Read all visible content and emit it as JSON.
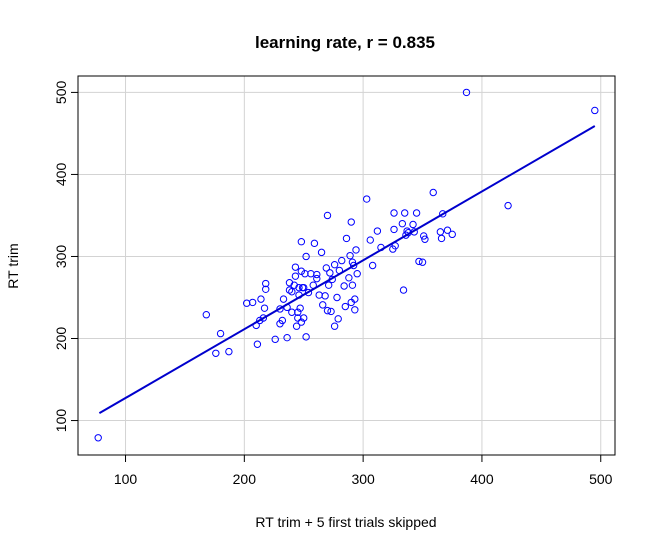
{
  "chart_data": {
    "type": "scatter",
    "title": "learning rate, r = 0.835",
    "xlabel": "RT trim + 5 first trials skipped",
    "ylabel": "RT trim",
    "xlim": [
      60,
      512
    ],
    "ylim": [
      58,
      520
    ],
    "xticks": [
      100,
      200,
      300,
      400,
      500
    ],
    "yticks": [
      100,
      200,
      300,
      400,
      500
    ],
    "grid": true,
    "point_color": "#0000ff",
    "line_color": "#0000cd",
    "points": [
      [
        77,
        79
      ],
      [
        168,
        229
      ],
      [
        176,
        182
      ],
      [
        180,
        206
      ],
      [
        187,
        184
      ],
      [
        202,
        243
      ],
      [
        207,
        244
      ],
      [
        210,
        216
      ],
      [
        211,
        193
      ],
      [
        213,
        222
      ],
      [
        214,
        248
      ],
      [
        217,
        237
      ],
      [
        218,
        260
      ],
      [
        218,
        267
      ],
      [
        216,
        225
      ],
      [
        226,
        199
      ],
      [
        230,
        218
      ],
      [
        230,
        236
      ],
      [
        232,
        222
      ],
      [
        233,
        248
      ],
      [
        236,
        201
      ],
      [
        236,
        238
      ],
      [
        238,
        259
      ],
      [
        238,
        268
      ],
      [
        240,
        257
      ],
      [
        240,
        232
      ],
      [
        242,
        265
      ],
      [
        243,
        276
      ],
      [
        243,
        287
      ],
      [
        244,
        215
      ],
      [
        245,
        225
      ],
      [
        245,
        232
      ],
      [
        246,
        253
      ],
      [
        246,
        262
      ],
      [
        247,
        237
      ],
      [
        248,
        220
      ],
      [
        248,
        282
      ],
      [
        248,
        318
      ],
      [
        249,
        262
      ],
      [
        250,
        225
      ],
      [
        250,
        262
      ],
      [
        251,
        279
      ],
      [
        252,
        202
      ],
      [
        252,
        300
      ],
      [
        254,
        256
      ],
      [
        256,
        279
      ],
      [
        258,
        265
      ],
      [
        259,
        316
      ],
      [
        261,
        273
      ],
      [
        261,
        278
      ],
      [
        263,
        253
      ],
      [
        265,
        305
      ],
      [
        266,
        241
      ],
      [
        268,
        252
      ],
      [
        269,
        286
      ],
      [
        270,
        350
      ],
      [
        270,
        234
      ],
      [
        271,
        265
      ],
      [
        272,
        280
      ],
      [
        273,
        233
      ],
      [
        274,
        272
      ],
      [
        276,
        215
      ],
      [
        276,
        290
      ],
      [
        278,
        250
      ],
      [
        279,
        224
      ],
      [
        280,
        283
      ],
      [
        282,
        295
      ],
      [
        284,
        264
      ],
      [
        285,
        239
      ],
      [
        286,
        322
      ],
      [
        288,
        274
      ],
      [
        289,
        301
      ],
      [
        290,
        342
      ],
      [
        290,
        244
      ],
      [
        291,
        265
      ],
      [
        291,
        293
      ],
      [
        292,
        289
      ],
      [
        293,
        235
      ],
      [
        293,
        248
      ],
      [
        294,
        308
      ],
      [
        295,
        279
      ],
      [
        303,
        370
      ],
      [
        306,
        320
      ],
      [
        308,
        289
      ],
      [
        312,
        331
      ],
      [
        315,
        311
      ],
      [
        325,
        309
      ],
      [
        326,
        333
      ],
      [
        326,
        353
      ],
      [
        327,
        313
      ],
      [
        333,
        340
      ],
      [
        334,
        259
      ],
      [
        335,
        353
      ],
      [
        336,
        326
      ],
      [
        337,
        331
      ],
      [
        338,
        329
      ],
      [
        342,
        339
      ],
      [
        343,
        330
      ],
      [
        345,
        353
      ],
      [
        347,
        294
      ],
      [
        350,
        293
      ],
      [
        351,
        325
      ],
      [
        352,
        321
      ],
      [
        359,
        378
      ],
      [
        365,
        330
      ],
      [
        366,
        322
      ],
      [
        367,
        352
      ],
      [
        371,
        332
      ],
      [
        375,
        327
      ],
      [
        387,
        500
      ],
      [
        422,
        362
      ],
      [
        495,
        478
      ]
    ],
    "regression_line": [
      [
        78,
        109
      ],
      [
        495,
        459
      ]
    ]
  }
}
